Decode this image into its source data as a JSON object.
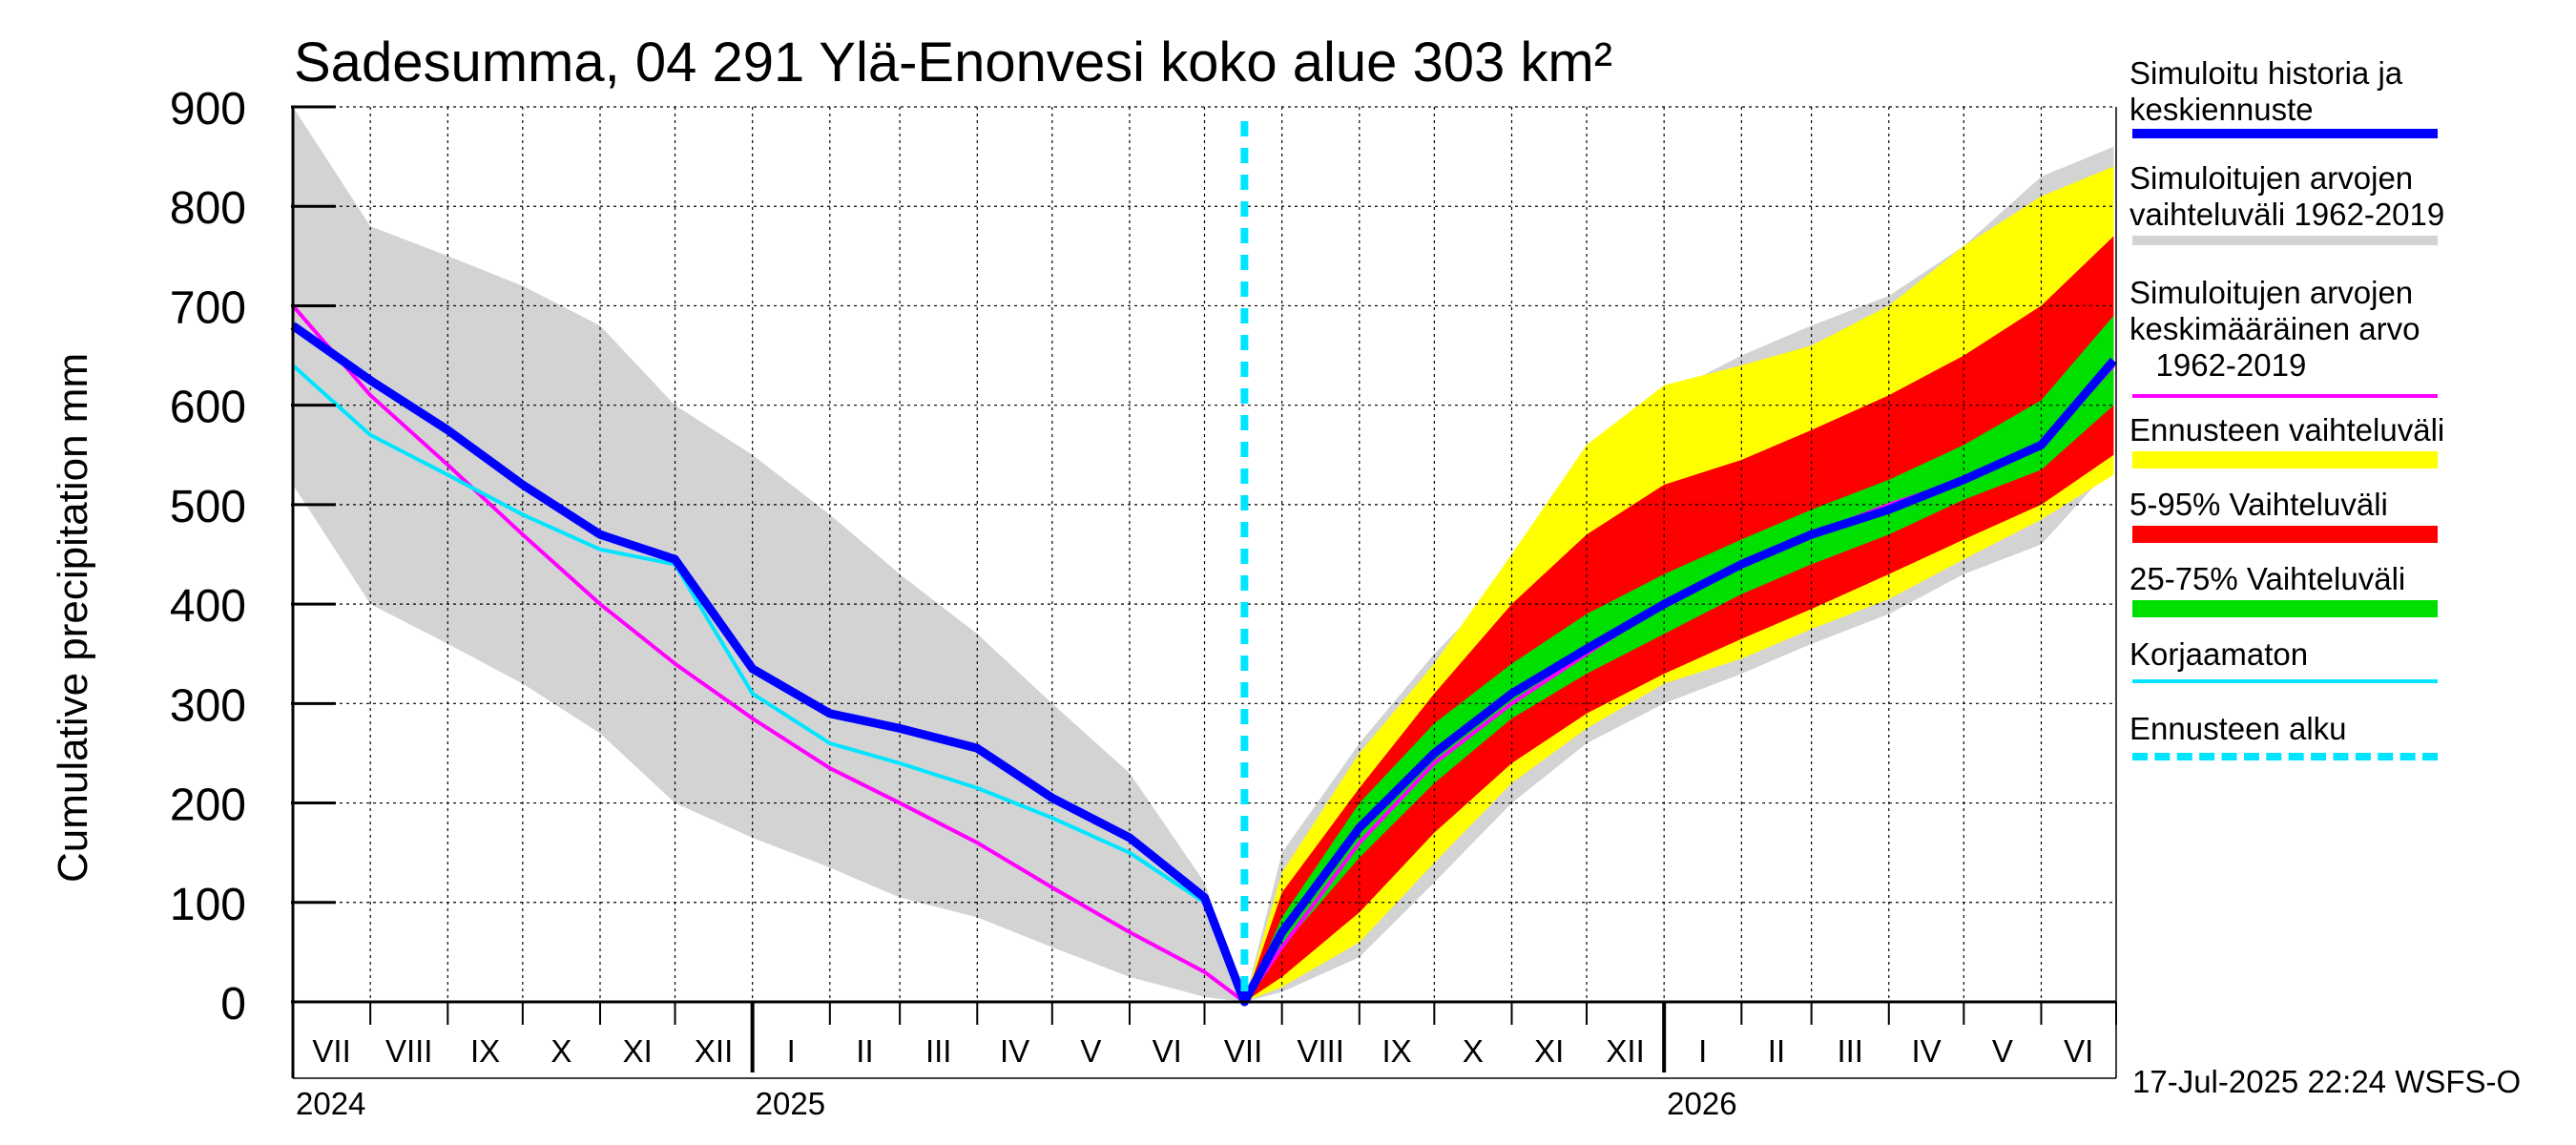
{
  "chart_data": {
    "type": "area",
    "title": "Sadesumma, 04 291 Ylä-Enonvesi koko alue 303 km²",
    "ylabel": "Cumulative precipitation   mm",
    "xlabel": "",
    "ylim": [
      0,
      900
    ],
    "yticks": [
      0,
      100,
      200,
      300,
      400,
      500,
      600,
      700,
      800,
      900
    ],
    "grid": true,
    "legend_position": "right",
    "forecast_start": "2025-07-17",
    "months": [
      "VII",
      "VIII",
      "IX",
      "X",
      "XI",
      "XII",
      "I",
      "II",
      "III",
      "IV",
      "V",
      "VI",
      "VII",
      "VIII",
      "IX",
      "X",
      "XI",
      "XII",
      "I",
      "II",
      "III",
      "IV",
      "V",
      "VI"
    ],
    "years": [
      "2024",
      "2025",
      "2026"
    ],
    "series": [
      {
        "name": "Simuloitu historia ja keskiennuste",
        "color": "#0000ff",
        "x": [
          "2024-07-01",
          "2024-08-01",
          "2024-09-01",
          "2024-10-01",
          "2024-11-01",
          "2024-12-01",
          "2025-01-01",
          "2025-02-01",
          "2025-03-01",
          "2025-04-01",
          "2025-05-01",
          "2025-06-01",
          "2025-07-01",
          "2025-07-17",
          "2025-08-01",
          "2025-09-01",
          "2025-10-01",
          "2025-11-01",
          "2025-12-01",
          "2026-01-01",
          "2026-02-01",
          "2026-03-01",
          "2026-04-01",
          "2026-05-01",
          "2026-06-01",
          "2026-06-30"
        ],
        "y": [
          680,
          625,
          575,
          520,
          470,
          445,
          335,
          290,
          275,
          255,
          205,
          165,
          105,
          0,
          70,
          175,
          250,
          310,
          355,
          400,
          440,
          470,
          495,
          525,
          560,
          645
        ]
      },
      {
        "name": "Korjaamaton",
        "color": "#00e5ff",
        "x": [
          "2024-07-01",
          "2024-08-01",
          "2024-09-01",
          "2024-10-01",
          "2024-11-01",
          "2024-12-01",
          "2025-01-01",
          "2025-02-01",
          "2025-03-01",
          "2025-04-01",
          "2025-05-01",
          "2025-06-01",
          "2025-07-01",
          "2025-07-17"
        ],
        "y": [
          640,
          570,
          530,
          490,
          455,
          440,
          310,
          260,
          240,
          215,
          185,
          150,
          100,
          0
        ]
      },
      {
        "name": "Simuloitujen arvojen keskimääräinen arvo 1962-2019",
        "color": "#ff00ff",
        "x": [
          "2024-07-01",
          "2024-08-01",
          "2024-09-01",
          "2024-10-01",
          "2024-11-01",
          "2024-12-01",
          "2025-01-01",
          "2025-02-01",
          "2025-03-01",
          "2025-04-01",
          "2025-05-01",
          "2025-06-01",
          "2025-07-01",
          "2025-07-17",
          "2025-08-01",
          "2025-09-01",
          "2025-10-01",
          "2025-11-01",
          "2025-12-01",
          "2026-01-01",
          "2026-02-01",
          "2026-03-01",
          "2026-04-01",
          "2026-05-01",
          "2026-06-01",
          "2026-06-30"
        ],
        "y": [
          700,
          610,
          540,
          470,
          400,
          340,
          285,
          235,
          200,
          160,
          115,
          70,
          30,
          0,
          55,
          160,
          240,
          300,
          350,
          400,
          440,
          470,
          500,
          525,
          560,
          640
        ]
      }
    ],
    "bands": [
      {
        "name": "Simuloitujen arvojen vaihteluväli 1962-2019",
        "color": "#d3d3d3",
        "x": [
          "2024-07-01",
          "2024-08-01",
          "2024-09-01",
          "2024-10-01",
          "2024-11-01",
          "2024-12-01",
          "2025-01-01",
          "2025-02-01",
          "2025-03-01",
          "2025-04-01",
          "2025-05-01",
          "2025-06-01",
          "2025-07-01",
          "2025-07-17",
          "2025-08-01",
          "2025-09-01",
          "2025-10-01",
          "2025-11-01",
          "2025-12-01",
          "2026-01-01",
          "2026-02-01",
          "2026-03-01",
          "2026-04-01",
          "2026-05-01",
          "2026-06-01",
          "2026-06-30"
        ],
        "low": [
          520,
          400,
          360,
          320,
          270,
          200,
          165,
          135,
          105,
          85,
          55,
          25,
          5,
          0,
          10,
          45,
          120,
          200,
          260,
          300,
          330,
          360,
          390,
          430,
          460,
          540
        ],
        "high": [
          900,
          780,
          750,
          720,
          680,
          600,
          550,
          490,
          430,
          370,
          300,
          230,
          120,
          0,
          150,
          260,
          350,
          430,
          540,
          610,
          650,
          680,
          710,
          760,
          830,
          860
        ]
      },
      {
        "name": "Ennusteen vaihteluväli",
        "color": "#ffff00",
        "x": [
          "2025-07-17",
          "2025-08-01",
          "2025-09-01",
          "2025-10-01",
          "2025-11-01",
          "2025-12-01",
          "2026-01-01",
          "2026-02-01",
          "2026-03-01",
          "2026-04-01",
          "2026-05-01",
          "2026-06-01",
          "2026-06-30"
        ],
        "low": [
          0,
          15,
          60,
          140,
          220,
          275,
          320,
          345,
          375,
          405,
          445,
          485,
          530
        ],
        "high": [
          0,
          130,
          250,
          340,
          450,
          560,
          620,
          640,
          660,
          700,
          760,
          810,
          840
        ]
      },
      {
        "name": "5-95% Vaihteluväli",
        "color": "#ff0000",
        "x": [
          "2025-07-17",
          "2025-08-01",
          "2025-09-01",
          "2025-10-01",
          "2025-11-01",
          "2025-12-01",
          "2026-01-01",
          "2026-02-01",
          "2026-03-01",
          "2026-04-01",
          "2026-05-01",
          "2026-06-01",
          "2026-06-30"
        ],
        "low": [
          0,
          25,
          90,
          170,
          240,
          290,
          330,
          365,
          395,
          430,
          465,
          500,
          550
        ],
        "high": [
          0,
          110,
          215,
          310,
          400,
          470,
          520,
          545,
          575,
          610,
          650,
          700,
          770
        ]
      },
      {
        "name": "25-75% Vaihteluväli",
        "color": "#00e000",
        "x": [
          "2025-07-17",
          "2025-08-01",
          "2025-09-01",
          "2025-10-01",
          "2025-11-01",
          "2025-12-01",
          "2026-01-01",
          "2026-02-01",
          "2026-03-01",
          "2026-04-01",
          "2026-05-01",
          "2026-06-01",
          "2026-06-30"
        ],
        "low": [
          0,
          55,
          145,
          220,
          285,
          330,
          370,
          410,
          440,
          470,
          505,
          535,
          600
        ],
        "high": [
          0,
          85,
          200,
          280,
          340,
          390,
          430,
          465,
          495,
          525,
          560,
          605,
          690
        ]
      }
    ],
    "legend": [
      {
        "text": "Simuloitu historia ja\nkeskiennuste",
        "color": "#0000ff",
        "style": "thick"
      },
      {
        "text": "Simuloitujen arvojen\nvaihteluväli 1962-2019",
        "color": "#d3d3d3",
        "style": "thick"
      },
      {
        "text": "Simuloitujen arvojen\nkeskimääräinen arvo\n   1962-2019",
        "color": "#ff00ff",
        "style": "thin"
      },
      {
        "text": "Ennusteen vaihteluväli",
        "color": "#ffff00",
        "style": "band"
      },
      {
        "text": "5-95% Vaihteluväli",
        "color": "#ff0000",
        "style": "band"
      },
      {
        "text": "25-75% Vaihteluväli",
        "color": "#00e000",
        "style": "band"
      },
      {
        "text": "Korjaamaton",
        "color": "#00e5ff",
        "style": "thin"
      },
      {
        "text": "Ennusteen alku",
        "color": "#00e5ff",
        "style": "dashed"
      }
    ],
    "footer": "17-Jul-2025 22:24 WSFS-O"
  }
}
